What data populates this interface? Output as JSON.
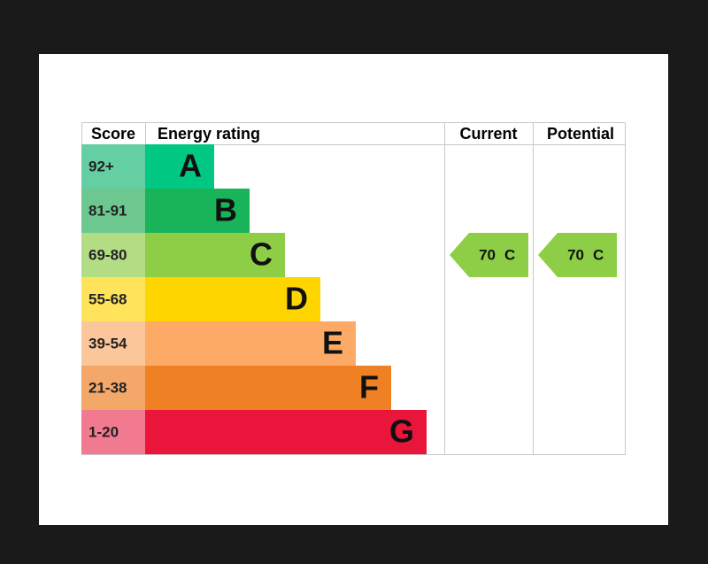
{
  "header": {
    "score": "Score",
    "rating": "Energy rating",
    "current": "Current",
    "potential": "Potential"
  },
  "rows": [
    {
      "score": "92+",
      "letter": "A",
      "color": "#00c781",
      "score_color": "#64cfa2"
    },
    {
      "score": "81-91",
      "letter": "B",
      "color": "#19b459",
      "score_color": "#6cc88f"
    },
    {
      "score": "69-80",
      "letter": "C",
      "color": "#8dce46",
      "score_color": "#b3dd85"
    },
    {
      "score": "55-68",
      "letter": "D",
      "color": "#ffd500",
      "score_color": "#ffe35b"
    },
    {
      "score": "39-54",
      "letter": "E",
      "color": "#fcaa65",
      "score_color": "#fbc79a"
    },
    {
      "score": "21-38",
      "letter": "F",
      "color": "#ef8023",
      "score_color": "#f3a768"
    },
    {
      "score": "1-20",
      "letter": "G",
      "color": "#e9153b",
      "score_color": "#f17a91"
    }
  ],
  "current": {
    "value": 70,
    "band": "C"
  },
  "potential": {
    "value": 70,
    "band": "C"
  }
}
